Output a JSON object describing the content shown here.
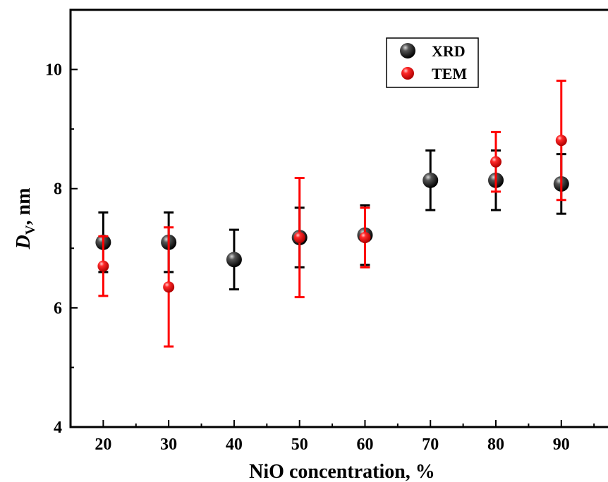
{
  "chart_data": {
    "type": "scatter",
    "xlabel": "NiO concentration, %",
    "ylabel": {
      "main": "D",
      "sub": "V",
      "unit": ", nm"
    },
    "xlim": [
      15,
      98
    ],
    "ylim": [
      4,
      11
    ],
    "x_ticks": [
      20,
      30,
      40,
      50,
      60,
      70,
      80,
      90
    ],
    "y_ticks": [
      4,
      6,
      8,
      10
    ],
    "y_minor_ticks": [
      5,
      7,
      9,
      11
    ],
    "grid": false,
    "legend_position": "top-right",
    "series": [
      {
        "name": "XRD",
        "color": "#000000",
        "points": [
          {
            "x": 20,
            "y": 7.1,
            "err": 0.5
          },
          {
            "x": 30,
            "y": 7.1,
            "err": 0.5
          },
          {
            "x": 40,
            "y": 6.81,
            "err": 0.5
          },
          {
            "x": 50,
            "y": 7.18,
            "err": 0.5
          },
          {
            "x": 60,
            "y": 7.22,
            "err": 0.5
          },
          {
            "x": 70,
            "y": 8.14,
            "err": 0.5
          },
          {
            "x": 80,
            "y": 8.14,
            "err": 0.5
          },
          {
            "x": 90,
            "y": 8.08,
            "err": 0.5
          }
        ]
      },
      {
        "name": "TEM",
        "color": "#ff0000",
        "points": [
          {
            "x": 20,
            "y": 6.7,
            "err": 0.5
          },
          {
            "x": 30,
            "y": 6.35,
            "err": 1.0
          },
          {
            "x": 50,
            "y": 7.18,
            "err": 1.0
          },
          {
            "x": 60,
            "y": 7.18,
            "err": 0.5
          },
          {
            "x": 80,
            "y": 8.45,
            "err": 0.5
          },
          {
            "x": 90,
            "y": 8.81,
            "err": 1.0
          }
        ]
      }
    ]
  }
}
